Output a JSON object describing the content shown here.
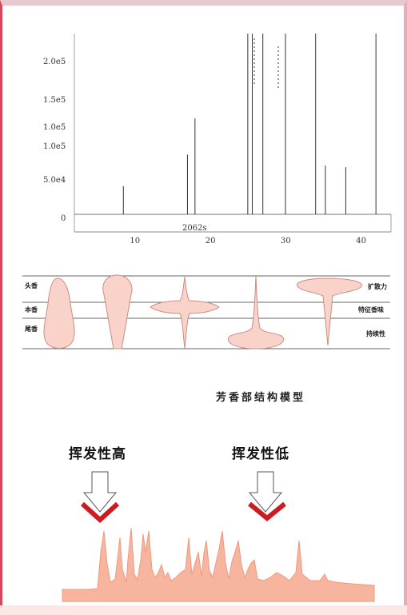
{
  "spectrum": {
    "chart_data": {
      "type": "bar",
      "y_tick_labels": [
        "2.0e5",
        "1.5e5",
        "1.0e5",
        "1.0e5",
        "5.0e4",
        "0"
      ],
      "x_tick_labels": [
        "10",
        "20",
        "30",
        "40"
      ],
      "x_values": [
        8.5,
        17,
        18,
        25,
        25.6,
        27,
        30,
        34,
        35.3,
        38,
        42
      ],
      "y_values": [
        0.36,
        0.76,
        1.22,
        2.3,
        2.3,
        2.3,
        2.3,
        2.3,
        0.62,
        0.6,
        2.3
      ],
      "xlim": [
        2,
        44
      ],
      "peak_label": "2062s"
    }
  },
  "aroma_model": {
    "left_labels": [
      "头香",
      "本香",
      "尾香"
    ],
    "right_labels": [
      "扩散力",
      "特征香味",
      "持续性"
    ],
    "title": "芳香部结构模型"
  },
  "volatility": {
    "high_label": "挥发性高",
    "low_label": "挥发性低"
  },
  "colors": {
    "shape_fill": "#f9d2c9",
    "shape_stroke": "#c98e86",
    "chevron": "#cc1b22",
    "chromatogram": "#f3a88c",
    "frame_accent": "#d9465c"
  }
}
